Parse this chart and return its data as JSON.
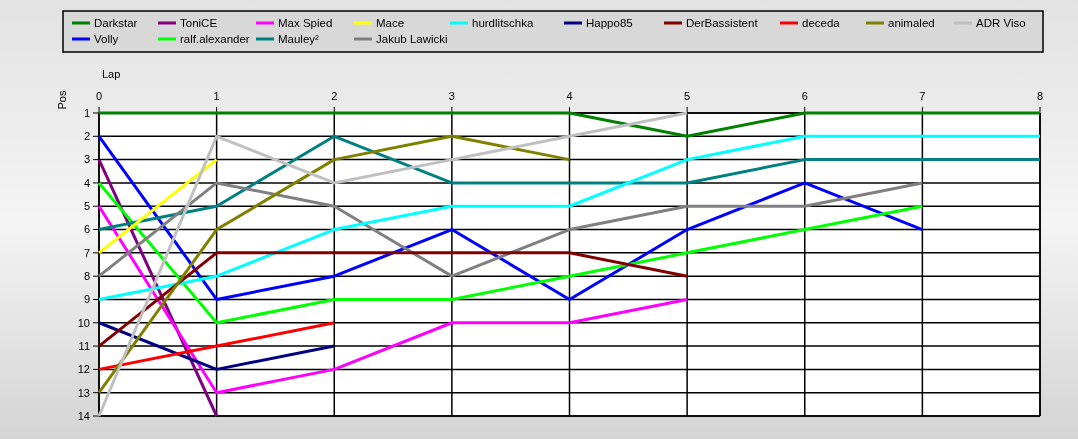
{
  "chart_data": {
    "type": "line",
    "xlabel": "Lap",
    "ylabel": "Pos",
    "xlim": [
      0,
      8
    ],
    "xticks": [
      0,
      1,
      2,
      3,
      4,
      5,
      6,
      7,
      8
    ],
    "ylim": [
      14,
      1
    ],
    "yticks": [
      1,
      2,
      3,
      4,
      5,
      6,
      7,
      8,
      9,
      10,
      11,
      12,
      13,
      14
    ],
    "grid": true,
    "legend": "top",
    "x": [
      0,
      1,
      2,
      3,
      4,
      5,
      6,
      7,
      8
    ],
    "series": [
      {
        "name": "Darkstar",
        "color": "#008000",
        "values": [
          1,
          1,
          1,
          1,
          1,
          2,
          1,
          1,
          1
        ]
      },
      {
        "name": "Volly",
        "color": "#0000ff",
        "values": [
          2,
          9,
          8,
          6,
          9,
          6,
          4,
          6,
          null
        ]
      },
      {
        "name": "ToniCE",
        "color": "#800080",
        "values": [
          3,
          14,
          null,
          null,
          null,
          null,
          null,
          null,
          null
        ]
      },
      {
        "name": "ralf.alexander",
        "color": "#00ff00",
        "values": [
          4,
          10,
          9,
          9,
          8,
          7,
          6,
          5,
          null
        ]
      },
      {
        "name": "Max Spied",
        "color": "#ff00ff",
        "values": [
          5,
          13,
          12,
          10,
          10,
          9,
          null,
          null,
          null
        ]
      },
      {
        "name": "Mauley²",
        "color": "#008080",
        "values": [
          6,
          5,
          2,
          4,
          4,
          4,
          3,
          3,
          3
        ]
      },
      {
        "name": "Mace",
        "color": "#ffff00",
        "values": [
          7,
          3,
          null,
          null,
          null,
          null,
          null,
          null,
          null
        ]
      },
      {
        "name": "Jakub Lawicki",
        "color": "#808080",
        "values": [
          8,
          4,
          5,
          8,
          6,
          5,
          5,
          4,
          null
        ]
      },
      {
        "name": "hurdlitschka",
        "color": "#00ffff",
        "values": [
          9,
          8,
          6,
          5,
          5,
          3,
          2,
          2,
          2
        ]
      },
      {
        "name": "Happo85",
        "color": "#000080",
        "values": [
          10,
          12,
          11,
          null,
          null,
          null,
          null,
          null,
          null
        ]
      },
      {
        "name": "DerBassistent",
        "color": "#800000",
        "values": [
          11,
          7,
          7,
          7,
          7,
          8,
          null,
          null,
          null
        ]
      },
      {
        "name": "deceda",
        "color": "#ff0000",
        "values": [
          12,
          11,
          10,
          null,
          null,
          null,
          null,
          null,
          null
        ]
      },
      {
        "name": "animaled",
        "color": "#808000",
        "values": [
          13,
          6,
          3,
          2,
          3,
          null,
          null,
          null,
          null
        ]
      },
      {
        "name": "ADR Viso",
        "color": "#c0c0c0",
        "values": [
          14,
          2,
          4,
          3,
          2,
          1,
          null,
          null,
          null
        ]
      }
    ]
  }
}
